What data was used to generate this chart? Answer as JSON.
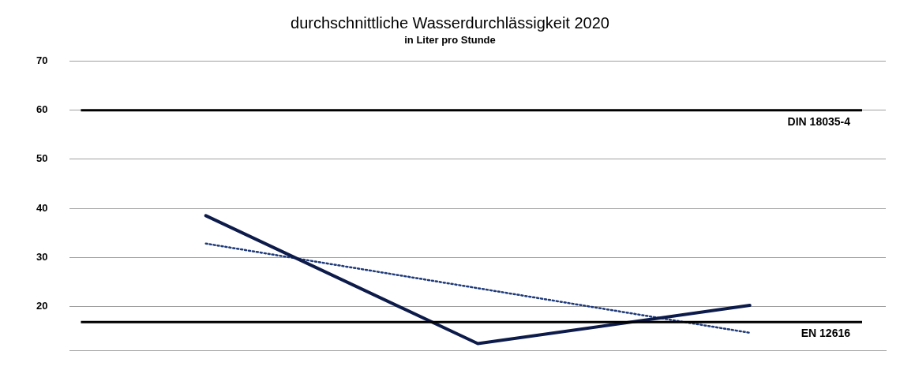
{
  "chart_data": {
    "type": "line",
    "title": "durchschnittliche Wasserdurchlässigkeit 2020",
    "subtitle": "in Liter pro Stunde",
    "categories": [
      null,
      null,
      null
    ],
    "series": [
      {
        "color": "#0d1b4a",
        "values": [
          38.5,
          12.4,
          20.2
        ],
        "line_style": "solid"
      },
      {
        "color": "#1f3a7a",
        "values": [
          32.8,
          23.7,
          14.6
        ],
        "line_style": "dotted"
      }
    ],
    "ylim": [
      11,
      70
    ],
    "yticks": [
      20,
      30,
      40,
      50,
      60,
      70
    ],
    "grid": "y",
    "legend": false,
    "marker": "none",
    "ref_lines": [
      {
        "axis": "y",
        "value": 60,
        "label": "DIN 18035-4",
        "color": "#000000"
      },
      {
        "axis": "y",
        "value": 16.8,
        "label": "EN 12616",
        "color": "#000000"
      }
    ]
  }
}
